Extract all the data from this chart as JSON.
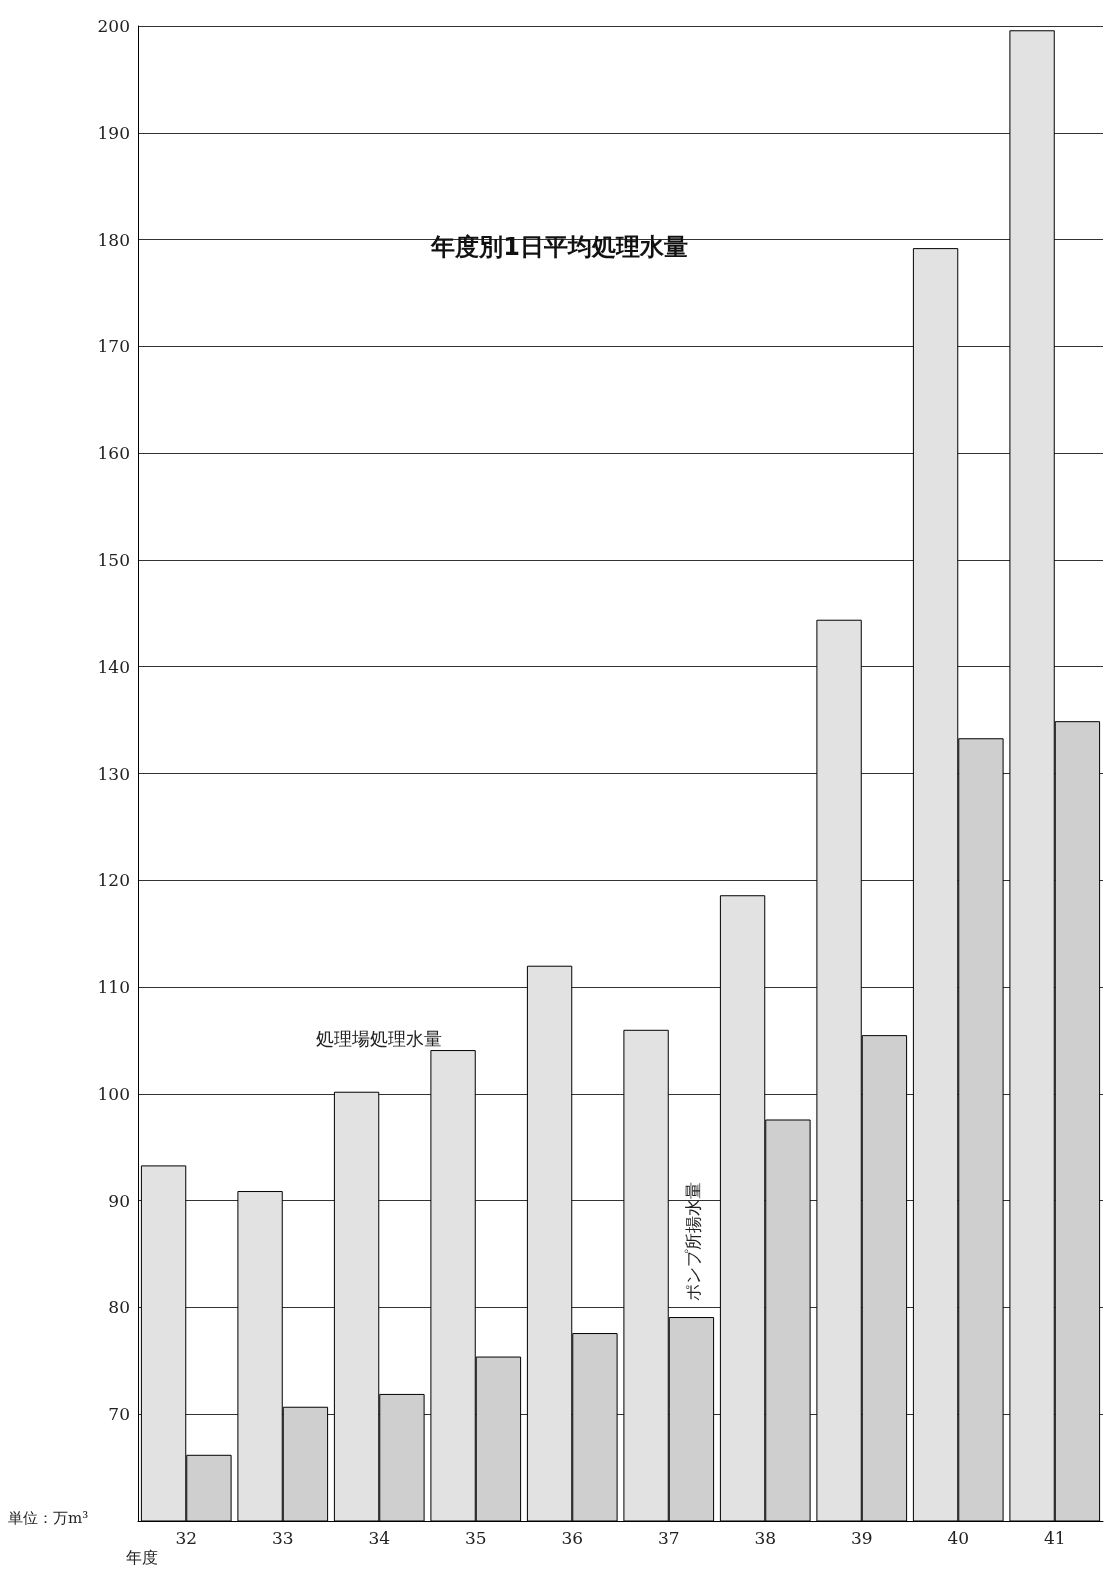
{
  "chart_data": {
    "type": "bar",
    "title": "年度別1日平均処理水量",
    "xlabel": "年度",
    "annotations": [
      "単位：万m³"
    ],
    "categories": [
      "32",
      "33",
      "34",
      "35",
      "36",
      "37",
      "38",
      "39",
      "40",
      "41"
    ],
    "series": [
      {
        "name": "処理場処理水量",
        "color": "#e2e2e2",
        "values": [
          93.3,
          90.9,
          100.2,
          104.1,
          112,
          106,
          118.6,
          144.4,
          179.2,
          199.6
        ]
      },
      {
        "name": "ポンプ所揚水量",
        "color": "#cfcfcf",
        "values": [
          66.2,
          70.7,
          71.9,
          75.4,
          77.6,
          79.1,
          97.6,
          105.5,
          133.3,
          134.9
        ]
      }
    ],
    "ylim": [
      60,
      200
    ],
    "yticks": [
      70,
      80,
      90,
      100,
      110,
      120,
      130,
      140,
      150,
      160,
      170,
      180,
      190,
      200
    ],
    "grid": "y",
    "legend": false
  }
}
